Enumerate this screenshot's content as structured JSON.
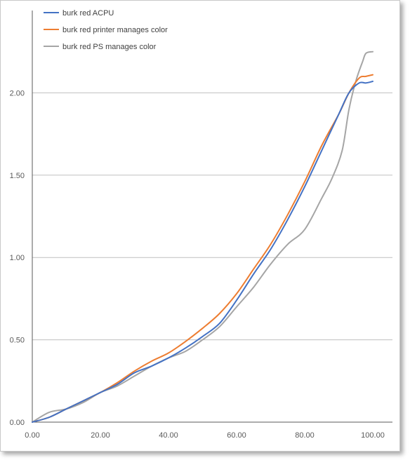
{
  "chart_data": {
    "type": "line",
    "title": "",
    "xlabel": "",
    "ylabel": "",
    "xlim": [
      0,
      100
    ],
    "ylim": [
      0,
      2.5
    ],
    "xticks": [
      0,
      20,
      40,
      60,
      80,
      100
    ],
    "yticks": [
      0,
      0.5,
      1.0,
      1.5,
      2.0
    ],
    "xtick_labels": [
      "0.00",
      "20.00",
      "40.00",
      "60.00",
      "80.00",
      "100.00"
    ],
    "ytick_labels": [
      "0.00",
      "0.50",
      "1.00",
      "1.50",
      "2.00"
    ],
    "grid": "horizontal",
    "legend_position": "top-left",
    "series": [
      {
        "name": "burk red ACPU",
        "color": "#4472c4",
        "x": [
          0,
          5,
          10,
          15,
          20,
          25,
          30,
          35,
          40,
          45,
          50,
          55,
          60,
          65,
          70,
          75,
          80,
          85,
          90,
          93,
          96,
          98,
          100
        ],
        "y": [
          0,
          0.03,
          0.08,
          0.13,
          0.18,
          0.23,
          0.3,
          0.34,
          0.39,
          0.45,
          0.52,
          0.6,
          0.74,
          0.9,
          1.05,
          1.23,
          1.43,
          1.65,
          1.87,
          2.0,
          2.06,
          2.06,
          2.07
        ]
      },
      {
        "name": "burk red printer manages color",
        "color": "#ed7d31",
        "x": [
          0,
          5,
          10,
          15,
          20,
          25,
          30,
          35,
          40,
          45,
          50,
          55,
          60,
          65,
          70,
          75,
          80,
          85,
          90,
          93,
          96,
          98,
          100
        ],
        "y": [
          0,
          0.03,
          0.08,
          0.13,
          0.18,
          0.24,
          0.31,
          0.37,
          0.42,
          0.49,
          0.57,
          0.66,
          0.78,
          0.93,
          1.08,
          1.26,
          1.46,
          1.68,
          1.87,
          2.0,
          2.09,
          2.1,
          2.11
        ]
      },
      {
        "name": "burk red PS manages color",
        "color": "#a5a5a5",
        "x": [
          0,
          5,
          10,
          15,
          20,
          25,
          30,
          35,
          40,
          45,
          50,
          55,
          60,
          65,
          70,
          75,
          80,
          85,
          88,
          91,
          93,
          95,
          97,
          98,
          100
        ],
        "y": [
          0,
          0.06,
          0.08,
          0.12,
          0.18,
          0.22,
          0.28,
          0.34,
          0.39,
          0.43,
          0.5,
          0.58,
          0.7,
          0.82,
          0.96,
          1.08,
          1.17,
          1.36,
          1.48,
          1.65,
          1.9,
          2.07,
          2.19,
          2.24,
          2.25
        ]
      }
    ]
  }
}
